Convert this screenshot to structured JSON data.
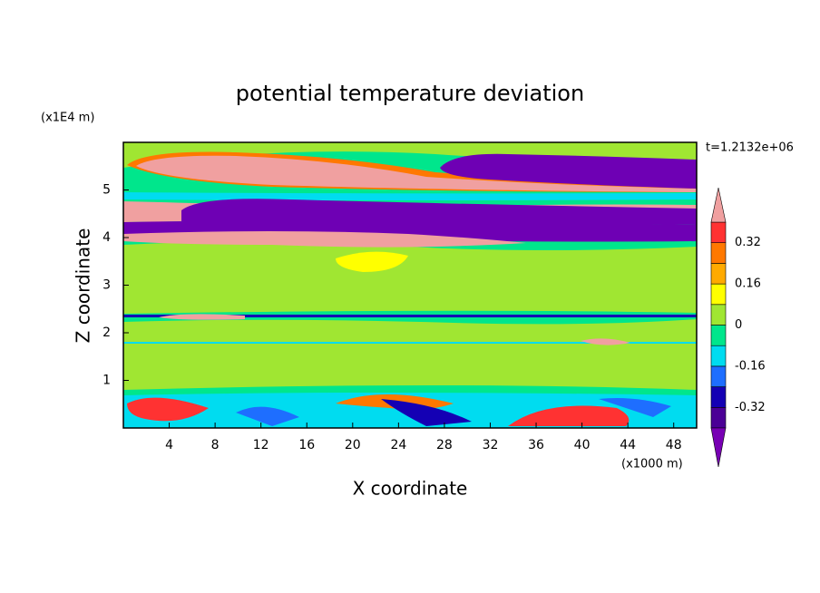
{
  "chart_data": {
    "type": "contour",
    "title": "potential temperature deviation",
    "x_label": "X coordinate",
    "y_label": "Z coordinate",
    "x_unit": "(x1000 m)",
    "y_unit": "(x1E4 m)",
    "time_label": "t=1.2132e+06",
    "xlim": [
      0,
      50
    ],
    "xticks": [
      4,
      8,
      12,
      16,
      20,
      24,
      28,
      32,
      36,
      40,
      44,
      48
    ],
    "ylim": [
      0,
      6
    ],
    "yticks": [
      1,
      2,
      3,
      4,
      5
    ],
    "colorbar": {
      "levels": [
        -0.4,
        -0.32,
        -0.24,
        -0.16,
        -0.08,
        0,
        0.08,
        0.16,
        0.24,
        0.32,
        0.4
      ],
      "ticks": [
        0.32,
        0.16,
        0,
        -0.16,
        -0.32
      ],
      "colors": [
        "#7800b4",
        "#4b0096",
        "#1400b4",
        "#1e6eff",
        "#00dcf0",
        "#00e68c",
        "#a0e632",
        "#ffff00",
        "#ffaa00",
        "#ff7800",
        "#ff3232",
        "#f0a0a0"
      ]
    }
  }
}
